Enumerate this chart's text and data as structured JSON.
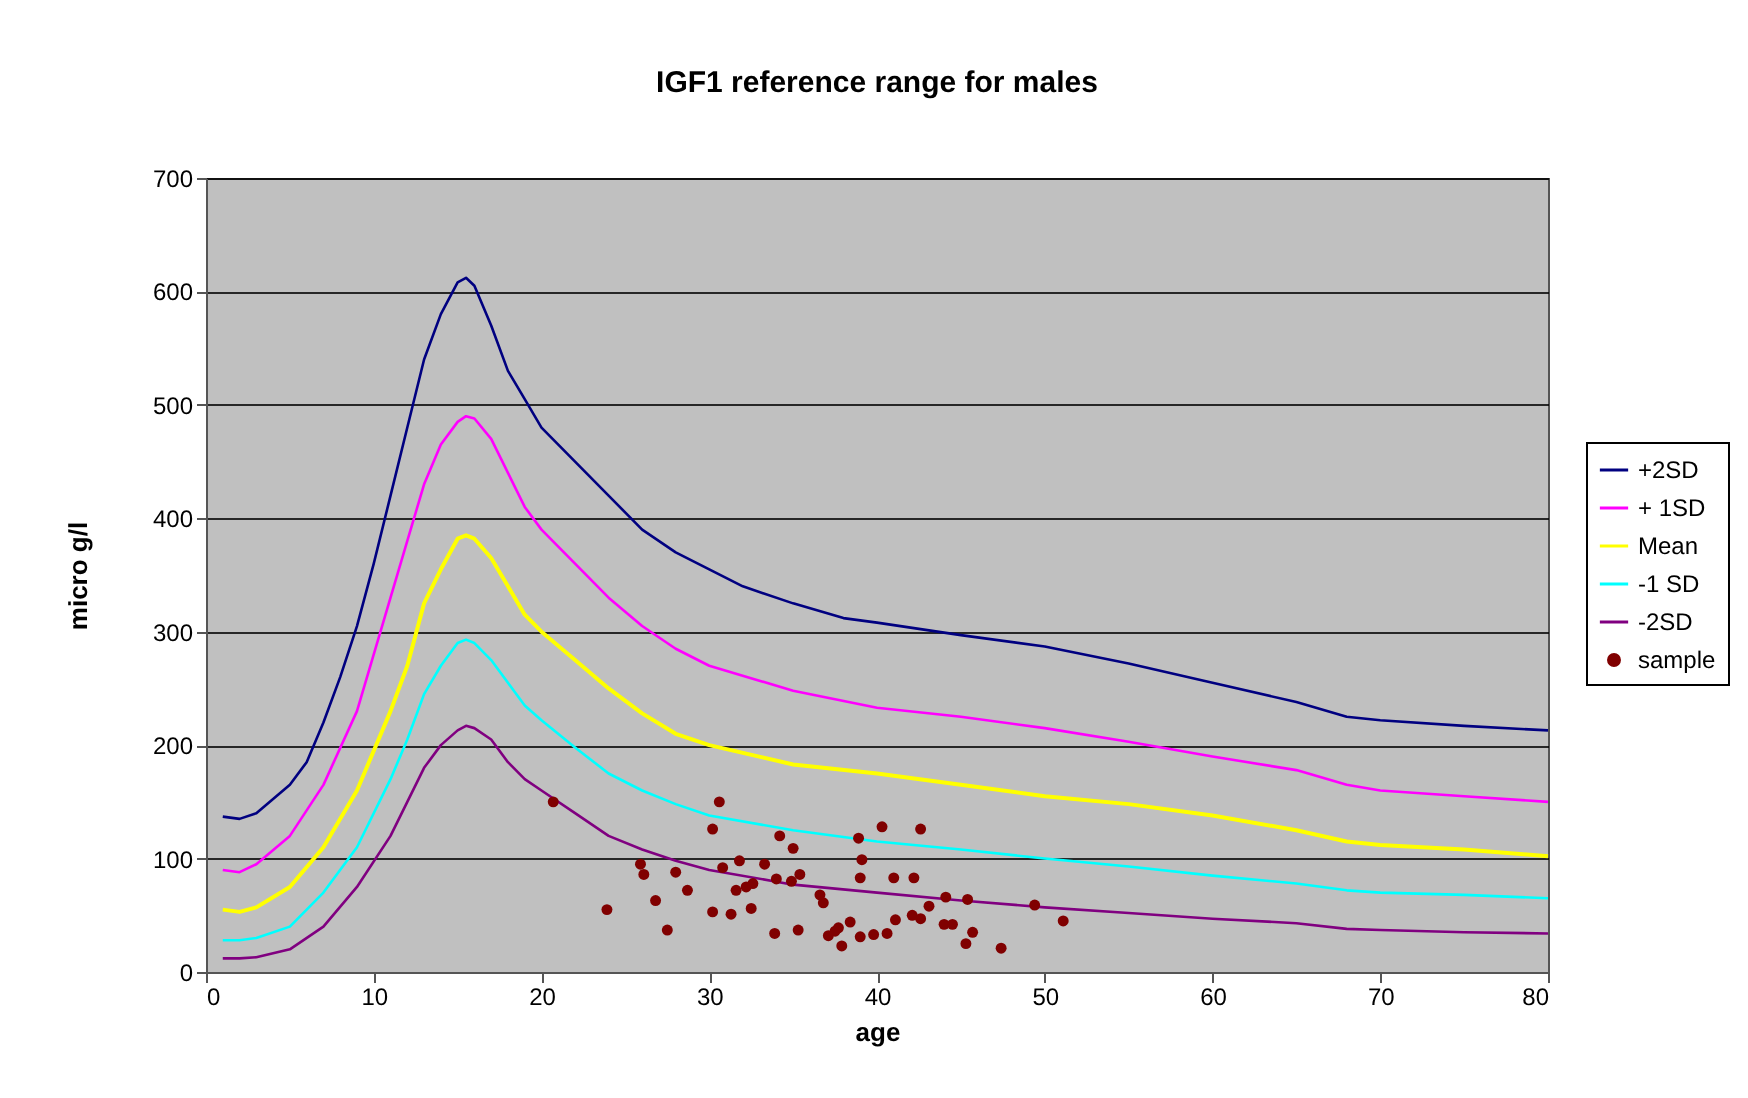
{
  "chart_data": {
    "type": "line",
    "title": "IGF1 reference range for males",
    "xlabel": "age",
    "ylabel": "micro g/l",
    "xlim": [
      0,
      80
    ],
    "xticks": [
      0,
      10,
      20,
      30,
      40,
      50,
      60,
      70,
      80
    ],
    "ylim": [
      0,
      700
    ],
    "yticks": [
      0,
      100,
      200,
      300,
      400,
      500,
      600,
      700
    ],
    "grid": "y",
    "legend": "right",
    "line_style": "solid",
    "series": [
      {
        "name": "+2SD",
        "color": "#000080",
        "x": [
          1,
          2,
          3,
          5,
          6,
          7,
          8,
          9,
          10,
          11,
          12,
          13,
          14,
          15,
          15.5,
          16,
          17,
          18,
          19,
          20,
          22,
          24,
          26,
          28,
          30,
          32,
          35,
          38,
          40,
          45,
          50,
          55,
          60,
          65,
          68,
          70,
          75,
          80
        ],
        "values": [
          137,
          135,
          140,
          165,
          185,
          220,
          260,
          305,
          360,
          420,
          480,
          540,
          580,
          608,
          612,
          605,
          570,
          530,
          505,
          480,
          450,
          420,
          390,
          370,
          355,
          340,
          325,
          312,
          308,
          297,
          287,
          272,
          255,
          238,
          225,
          222,
          217,
          213
        ]
      },
      {
        "name": "+ 1SD",
        "color": "#ff00ff",
        "x": [
          1,
          2,
          3,
          5,
          7,
          9,
          11,
          12,
          13,
          14,
          15,
          15.5,
          16,
          17,
          18,
          19,
          20,
          22,
          24,
          26,
          28,
          30,
          35,
          40,
          45,
          50,
          55,
          60,
          65,
          68,
          70,
          75,
          80
        ],
        "values": [
          90,
          88,
          95,
          120,
          165,
          230,
          330,
          380,
          430,
          465,
          485,
          490,
          488,
          470,
          440,
          410,
          390,
          360,
          330,
          305,
          285,
          270,
          248,
          233,
          225,
          215,
          203,
          190,
          178,
          165,
          160,
          155,
          150
        ]
      },
      {
        "name": "Mean",
        "color": "#ffff00",
        "x": [
          1,
          2,
          3,
          5,
          7,
          9,
          11,
          12,
          13,
          14,
          15,
          15.5,
          16,
          17,
          18,
          19,
          20,
          22,
          24,
          26,
          28,
          30,
          35,
          40,
          45,
          50,
          55,
          60,
          65,
          68,
          70,
          75,
          80
        ],
        "values": [
          55,
          53,
          57,
          75,
          110,
          160,
          230,
          270,
          325,
          355,
          382,
          385,
          382,
          365,
          340,
          315,
          300,
          275,
          250,
          228,
          210,
          200,
          183,
          175,
          165,
          155,
          148,
          138,
          125,
          115,
          112,
          108,
          102
        ]
      },
      {
        "name": "-1 SD",
        "color": "#00ffff",
        "x": [
          1,
          2,
          3,
          5,
          7,
          9,
          11,
          12,
          13,
          14,
          15,
          15.5,
          16,
          17,
          18,
          19,
          20,
          22,
          24,
          26,
          28,
          30,
          35,
          40,
          45,
          50,
          55,
          60,
          65,
          68,
          70,
          75,
          80
        ],
        "values": [
          28,
          28,
          30,
          40,
          70,
          110,
          170,
          205,
          245,
          270,
          290,
          293,
          290,
          275,
          255,
          235,
          222,
          198,
          175,
          160,
          148,
          138,
          125,
          115,
          108,
          100,
          93,
          85,
          78,
          72,
          70,
          68,
          65
        ]
      },
      {
        "name": "-2SD",
        "color": "#800080",
        "x": [
          1,
          2,
          3,
          5,
          7,
          9,
          11,
          12,
          13,
          14,
          15,
          15.5,
          16,
          17,
          18,
          19,
          20,
          22,
          24,
          26,
          28,
          30,
          35,
          40,
          45,
          50,
          55,
          60,
          65,
          68,
          70,
          75,
          80
        ],
        "values": [
          12,
          12,
          13,
          20,
          40,
          75,
          120,
          150,
          180,
          200,
          213,
          217,
          215,
          205,
          185,
          170,
          160,
          140,
          120,
          108,
          98,
          90,
          77,
          70,
          63,
          57,
          52,
          47,
          43,
          38,
          37,
          35,
          34
        ]
      },
      {
        "name": "sample",
        "type": "scatter",
        "marker": "circle",
        "color": "#800000",
        "x": [
          20.7,
          30.6,
          30.2,
          34.2,
          35.0,
          38.9,
          40.3,
          42.6,
          39.1,
          25.9,
          26.1,
          28.0,
          30.8,
          31.8,
          33.3,
          35.4,
          34.9,
          34.0,
          32.6,
          32.2,
          31.6,
          28.7,
          39.0,
          41.0,
          42.2,
          36.6,
          36.8,
          26.8,
          23.9,
          30.2,
          31.3,
          32.5,
          43.1,
          44.1,
          45.4,
          49.4,
          51.1,
          42.1,
          42.6,
          41.1,
          44.0,
          44.5,
          38.4,
          37.7,
          37.5,
          37.1,
          39.0,
          39.8,
          40.6,
          45.7,
          45.3,
          47.4,
          37.9,
          27.5,
          33.9,
          35.3
        ],
        "values": [
          150,
          150,
          126,
          120,
          109,
          118,
          128,
          126,
          99,
          95,
          86,
          88,
          92,
          98,
          95,
          86,
          80,
          82,
          78,
          75,
          72,
          72,
          83,
          83,
          83,
          68,
          61,
          63,
          55,
          53,
          51,
          56,
          58,
          66,
          64,
          59,
          45,
          50,
          47,
          46,
          42,
          42,
          44,
          39,
          36,
          32,
          31,
          33,
          34,
          35,
          25,
          21,
          23,
          37,
          34,
          37
        ]
      }
    ]
  }
}
